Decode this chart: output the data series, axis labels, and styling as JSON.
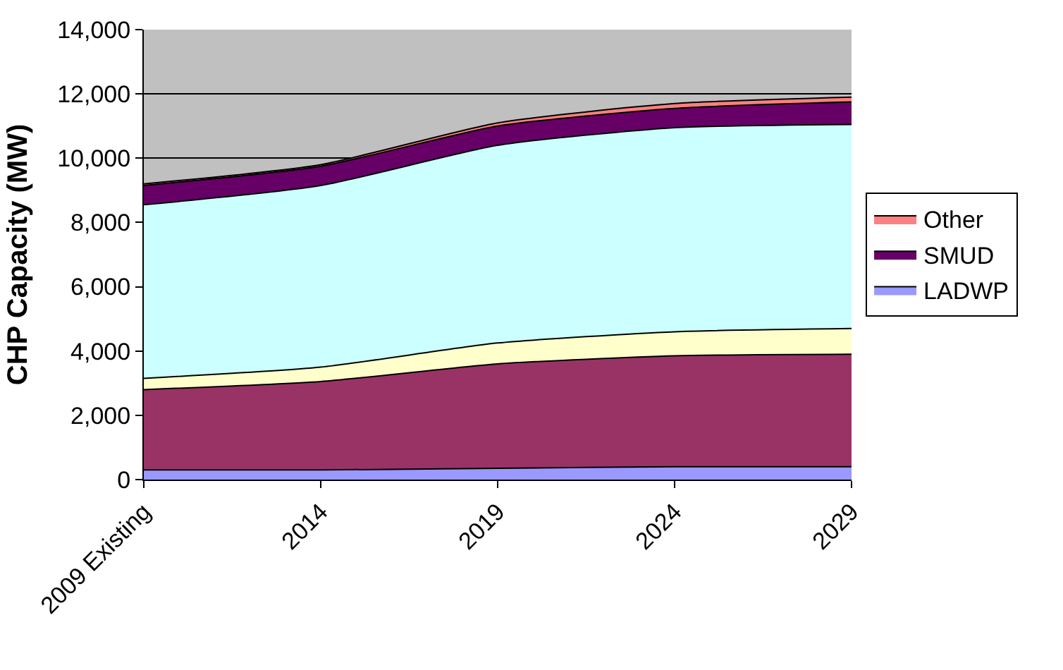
{
  "chart_data": {
    "type": "area",
    "stacked": true,
    "ylabel": "CHP Capacity (MW)",
    "categories": [
      "2009 Existing",
      "2014",
      "2019",
      "2024",
      "2029"
    ],
    "ylim": [
      0,
      14000
    ],
    "yticks": [
      {
        "value": 0,
        "label": "0"
      },
      {
        "value": 2000,
        "label": "2,000"
      },
      {
        "value": 4000,
        "label": "4,000"
      },
      {
        "value": 6000,
        "label": "6,000"
      },
      {
        "value": 8000,
        "label": "8,000"
      },
      {
        "value": 10000,
        "label": "10,000"
      },
      {
        "value": 12000,
        "label": "12,000"
      },
      {
        "value": 14000,
        "label": "14,000"
      }
    ],
    "grid": "y",
    "legend": "right",
    "series": [
      {
        "name": "LADWP",
        "color": "#9999ff",
        "values": [
          300,
          300,
          350,
          400,
          400
        ]
      },
      {
        "color": "#993366",
        "values": [
          2500,
          2750,
          3250,
          3450,
          3500
        ]
      },
      {
        "color": "#ffffcc",
        "values": [
          350,
          450,
          650,
          750,
          800
        ]
      },
      {
        "color": "#ccffff",
        "values": [
          5400,
          5650,
          6150,
          6350,
          6350
        ]
      },
      {
        "name": "SMUD",
        "color": "#660066",
        "values": [
          600,
          600,
          600,
          600,
          700
        ]
      },
      {
        "name": "Other",
        "color": "#ff8080",
        "values": [
          50,
          50,
          100,
          150,
          150
        ]
      }
    ]
  }
}
